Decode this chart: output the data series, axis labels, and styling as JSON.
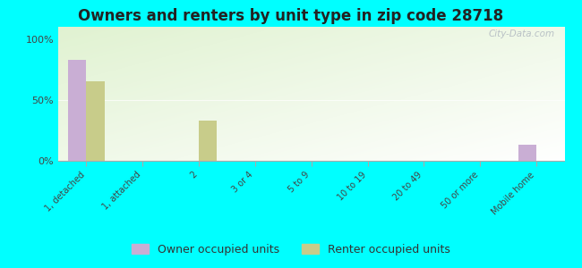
{
  "title": "Owners and renters by unit type in zip code 28718",
  "categories": [
    "1, detached",
    "1, attached",
    "2",
    "3 or 4",
    "5 to 9",
    "10 to 19",
    "20 to 49",
    "50 or more",
    "Mobile home"
  ],
  "owner_values": [
    83,
    0,
    0,
    0,
    0,
    0,
    0,
    0,
    13
  ],
  "renter_values": [
    65,
    0,
    33,
    0,
    0,
    0,
    0,
    0,
    0
  ],
  "owner_color": "#c9aed4",
  "renter_color": "#c8cc8a",
  "outer_bg": "#00ffff",
  "ylabel_ticks": [
    0,
    50,
    100
  ],
  "ylabel_labels": [
    "0%",
    "50%",
    "100%"
  ],
  "bar_width": 0.32,
  "watermark": "City-Data.com",
  "title_fontsize": 12,
  "tick_fontsize": 7,
  "legend_fontsize": 9
}
